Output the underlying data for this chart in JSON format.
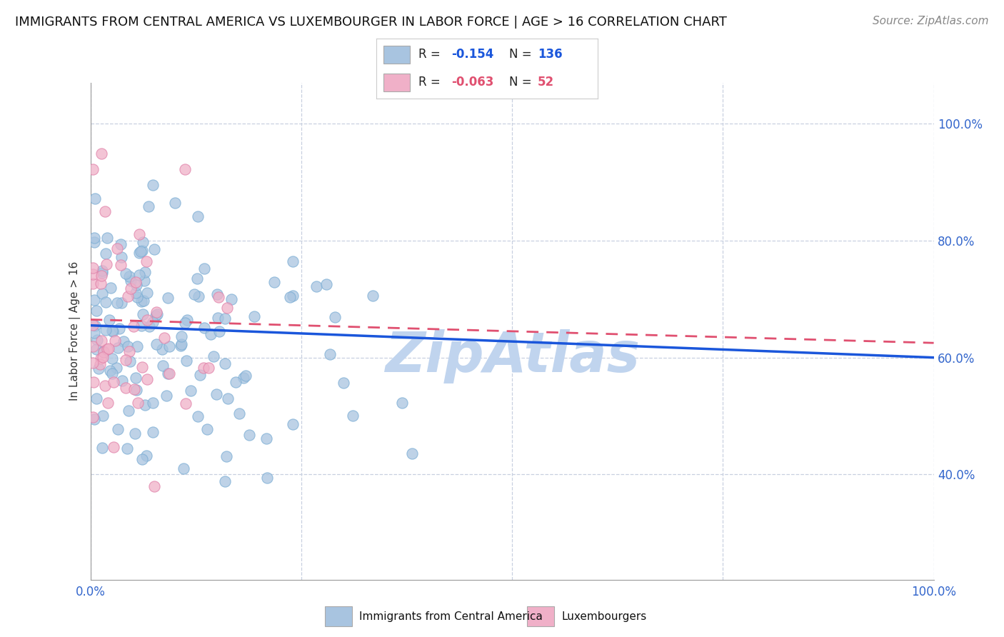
{
  "title": "IMMIGRANTS FROM CENTRAL AMERICA VS LUXEMBOURGER IN LABOR FORCE | AGE > 16 CORRELATION CHART",
  "source": "Source: ZipAtlas.com",
  "ylabel": "In Labor Force | Age > 16",
  "r_blue": -0.154,
  "n_blue": 136,
  "r_pink": -0.063,
  "n_pink": 52,
  "xlim": [
    0.0,
    1.0
  ],
  "ylim": [
    0.22,
    1.07
  ],
  "yticks": [
    0.4,
    0.6,
    0.8,
    1.0
  ],
  "ytick_labels": [
    "40.0%",
    "60.0%",
    "80.0%",
    "100.0%"
  ],
  "xticks": [
    0.0,
    0.25,
    0.5,
    0.75,
    1.0
  ],
  "xtick_labels": [
    "0.0%",
    "",
    "",
    "",
    "100.0%"
  ],
  "blue_color": "#a8c4e0",
  "blue_edge_color": "#7aadd4",
  "blue_line_color": "#1a56db",
  "pink_color": "#f0b0c8",
  "pink_edge_color": "#e080a8",
  "pink_line_color": "#e05070",
  "watermark": "ZipAtlas",
  "watermark_color": "#c0d4ee",
  "background_color": "#ffffff",
  "title_fontsize": 13,
  "source_fontsize": 11,
  "scatter_size": 120,
  "grid_color": "#c8d0e0",
  "tick_color": "#3366cc"
}
